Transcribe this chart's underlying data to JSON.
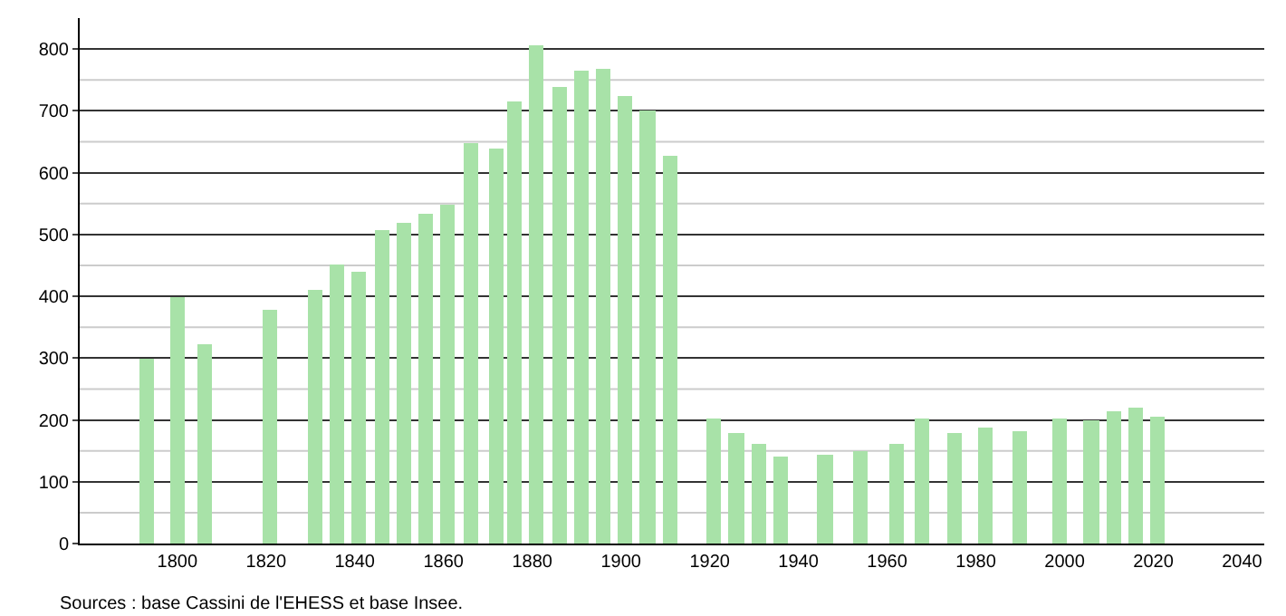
{
  "chart_data": {
    "type": "bar",
    "x": [
      1793,
      1800,
      1806,
      1821,
      1831,
      1836,
      1841,
      1846,
      1851,
      1856,
      1861,
      1866,
      1872,
      1876,
      1881,
      1886,
      1891,
      1896,
      1901,
      1906,
      1911,
      1921,
      1926,
      1931,
      1936,
      1946,
      1954,
      1962,
      1968,
      1975,
      1982,
      1990,
      1999,
      2006,
      2011,
      2016,
      2021
    ],
    "values": [
      300,
      400,
      322,
      379,
      410,
      451,
      441,
      507,
      518,
      533,
      549,
      648,
      638,
      716,
      807,
      739,
      766,
      767,
      724,
      701,
      626,
      201,
      179,
      161,
      141,
      145,
      150,
      161,
      203,
      180,
      189,
      183,
      201,
      199,
      214,
      221,
      204
    ],
    "color": "#a8e2a8",
    "xlim": [
      1778,
      2045
    ],
    "xticks": [
      1800,
      1820,
      1840,
      1860,
      1880,
      1900,
      1920,
      1940,
      1960,
      1980,
      2000,
      2020,
      2040
    ],
    "ylim": [
      0,
      850
    ],
    "yticks": [
      0,
      100,
      200,
      300,
      400,
      500,
      600,
      700,
      800
    ],
    "grid": "y",
    "annotations": [
      "Sources : base Cassini de l'EHESS et base Insee."
    ]
  }
}
